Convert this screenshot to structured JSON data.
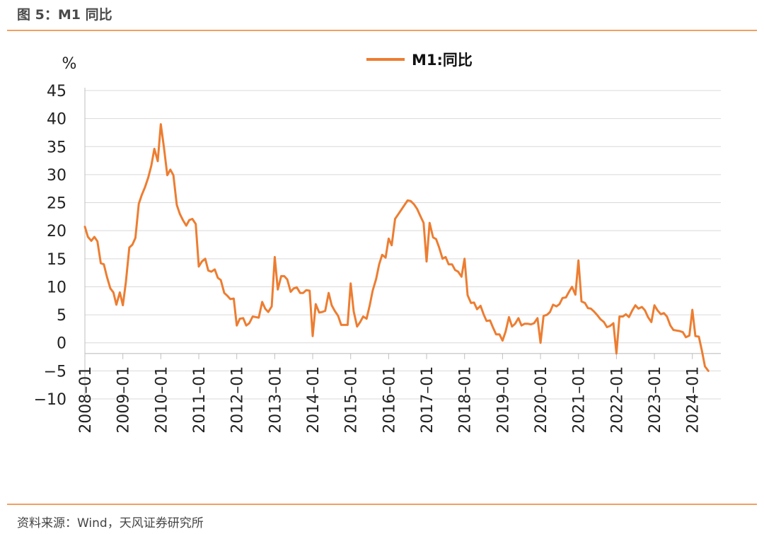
{
  "header": {
    "title": "图 5：M1 同比"
  },
  "footer": {
    "source": "资料来源：Wind，天风证券研究所"
  },
  "chart_data": {
    "type": "line",
    "unit_label": "%",
    "ylim": [
      -10,
      45
    ],
    "yticks": [
      45,
      40,
      35,
      30,
      25,
      20,
      15,
      10,
      5,
      0,
      -5,
      -10
    ],
    "xlim": [
      2008.0,
      2024.75
    ],
    "xticks": [
      "2008-01",
      "2009-01",
      "2010-01",
      "2011-01",
      "2012-01",
      "2013-01",
      "2014-01",
      "2015-01",
      "2016-01",
      "2017-01",
      "2018-01",
      "2019-01",
      "2020-01",
      "2021-01",
      "2022-01",
      "2023-01",
      "2024-01"
    ],
    "grid": true,
    "legend_position": "top-center",
    "colors": {
      "series": "#ed7d31",
      "grid": "#d9d9d9",
      "axis": "#bfbfbf"
    },
    "series": [
      {
        "name": "M1:同比",
        "points": [
          [
            2008.0,
            20.7
          ],
          [
            2008.08,
            18.9
          ],
          [
            2008.17,
            18.2
          ],
          [
            2008.25,
            18.9
          ],
          [
            2008.33,
            18.1
          ],
          [
            2008.42,
            14.2
          ],
          [
            2008.5,
            14.0
          ],
          [
            2008.58,
            11.8
          ],
          [
            2008.67,
            9.7
          ],
          [
            2008.75,
            9.0
          ],
          [
            2008.83,
            6.8
          ],
          [
            2008.92,
            9.0
          ],
          [
            2009.0,
            6.7
          ],
          [
            2009.08,
            10.9
          ],
          [
            2009.17,
            17.0
          ],
          [
            2009.25,
            17.5
          ],
          [
            2009.33,
            18.7
          ],
          [
            2009.42,
            24.8
          ],
          [
            2009.5,
            26.4
          ],
          [
            2009.58,
            27.7
          ],
          [
            2009.67,
            29.5
          ],
          [
            2009.75,
            31.6
          ],
          [
            2009.83,
            34.6
          ],
          [
            2009.92,
            32.4
          ],
          [
            2010.0,
            39.0
          ],
          [
            2010.08,
            35.0
          ],
          [
            2010.17,
            29.9
          ],
          [
            2010.25,
            30.9
          ],
          [
            2010.33,
            29.9
          ],
          [
            2010.42,
            24.6
          ],
          [
            2010.5,
            23.0
          ],
          [
            2010.58,
            21.9
          ],
          [
            2010.67,
            20.9
          ],
          [
            2010.75,
            21.9
          ],
          [
            2010.83,
            22.1
          ],
          [
            2010.92,
            21.2
          ],
          [
            2011.0,
            13.6
          ],
          [
            2011.08,
            14.5
          ],
          [
            2011.17,
            15.0
          ],
          [
            2011.25,
            12.9
          ],
          [
            2011.33,
            12.7
          ],
          [
            2011.42,
            13.1
          ],
          [
            2011.5,
            11.6
          ],
          [
            2011.58,
            11.2
          ],
          [
            2011.67,
            8.9
          ],
          [
            2011.75,
            8.4
          ],
          [
            2011.83,
            7.8
          ],
          [
            2011.92,
            7.9
          ],
          [
            2012.0,
            3.1
          ],
          [
            2012.08,
            4.3
          ],
          [
            2012.17,
            4.4
          ],
          [
            2012.25,
            3.1
          ],
          [
            2012.33,
            3.5
          ],
          [
            2012.42,
            4.7
          ],
          [
            2012.5,
            4.6
          ],
          [
            2012.58,
            4.5
          ],
          [
            2012.67,
            7.3
          ],
          [
            2012.75,
            6.1
          ],
          [
            2012.83,
            5.5
          ],
          [
            2012.92,
            6.5
          ],
          [
            2013.0,
            15.3
          ],
          [
            2013.08,
            9.5
          ],
          [
            2013.17,
            11.9
          ],
          [
            2013.25,
            11.9
          ],
          [
            2013.33,
            11.3
          ],
          [
            2013.42,
            9.1
          ],
          [
            2013.5,
            9.7
          ],
          [
            2013.58,
            9.9
          ],
          [
            2013.67,
            8.9
          ],
          [
            2013.75,
            8.9
          ],
          [
            2013.83,
            9.4
          ],
          [
            2013.92,
            9.3
          ],
          [
            2014.0,
            1.2
          ],
          [
            2014.08,
            6.9
          ],
          [
            2014.17,
            5.4
          ],
          [
            2014.25,
            5.5
          ],
          [
            2014.33,
            5.7
          ],
          [
            2014.42,
            8.9
          ],
          [
            2014.5,
            6.7
          ],
          [
            2014.58,
            5.7
          ],
          [
            2014.67,
            4.8
          ],
          [
            2014.75,
            3.2
          ],
          [
            2014.83,
            3.2
          ],
          [
            2014.92,
            3.2
          ],
          [
            2015.0,
            10.6
          ],
          [
            2015.08,
            5.6
          ],
          [
            2015.17,
            2.9
          ],
          [
            2015.25,
            3.7
          ],
          [
            2015.33,
            4.7
          ],
          [
            2015.42,
            4.3
          ],
          [
            2015.5,
            6.6
          ],
          [
            2015.58,
            9.3
          ],
          [
            2015.67,
            11.4
          ],
          [
            2015.75,
            14.0
          ],
          [
            2015.83,
            15.7
          ],
          [
            2015.92,
            15.2
          ],
          [
            2016.0,
            18.6
          ],
          [
            2016.08,
            17.4
          ],
          [
            2016.17,
            22.1
          ],
          [
            2016.25,
            22.9
          ],
          [
            2016.33,
            23.7
          ],
          [
            2016.42,
            24.6
          ],
          [
            2016.5,
            25.4
          ],
          [
            2016.58,
            25.3
          ],
          [
            2016.67,
            24.7
          ],
          [
            2016.75,
            23.9
          ],
          [
            2016.83,
            22.7
          ],
          [
            2016.92,
            21.4
          ],
          [
            2017.0,
            14.5
          ],
          [
            2017.08,
            21.4
          ],
          [
            2017.17,
            18.8
          ],
          [
            2017.25,
            18.5
          ],
          [
            2017.33,
            17.0
          ],
          [
            2017.42,
            15.0
          ],
          [
            2017.5,
            15.3
          ],
          [
            2017.58,
            14.0
          ],
          [
            2017.67,
            14.0
          ],
          [
            2017.75,
            13.0
          ],
          [
            2017.83,
            12.7
          ],
          [
            2017.92,
            11.8
          ],
          [
            2018.0,
            15.0
          ],
          [
            2018.08,
            8.5
          ],
          [
            2018.17,
            7.1
          ],
          [
            2018.25,
            7.2
          ],
          [
            2018.33,
            6.0
          ],
          [
            2018.42,
            6.6
          ],
          [
            2018.5,
            5.1
          ],
          [
            2018.58,
            3.9
          ],
          [
            2018.67,
            4.0
          ],
          [
            2018.75,
            2.7
          ],
          [
            2018.83,
            1.5
          ],
          [
            2018.92,
            1.5
          ],
          [
            2019.0,
            0.4
          ],
          [
            2019.08,
            2.0
          ],
          [
            2019.17,
            4.6
          ],
          [
            2019.25,
            2.9
          ],
          [
            2019.33,
            3.4
          ],
          [
            2019.42,
            4.4
          ],
          [
            2019.5,
            3.1
          ],
          [
            2019.58,
            3.4
          ],
          [
            2019.67,
            3.4
          ],
          [
            2019.75,
            3.3
          ],
          [
            2019.83,
            3.5
          ],
          [
            2019.92,
            4.4
          ],
          [
            2020.0,
            0.0
          ],
          [
            2020.08,
            4.8
          ],
          [
            2020.17,
            5.0
          ],
          [
            2020.25,
            5.5
          ],
          [
            2020.33,
            6.8
          ],
          [
            2020.42,
            6.5
          ],
          [
            2020.5,
            6.9
          ],
          [
            2020.58,
            8.0
          ],
          [
            2020.67,
            8.1
          ],
          [
            2020.75,
            9.1
          ],
          [
            2020.83,
            10.0
          ],
          [
            2020.92,
            8.6
          ],
          [
            2021.0,
            14.7
          ],
          [
            2021.08,
            7.4
          ],
          [
            2021.17,
            7.1
          ],
          [
            2021.25,
            6.2
          ],
          [
            2021.33,
            6.1
          ],
          [
            2021.42,
            5.5
          ],
          [
            2021.5,
            4.9
          ],
          [
            2021.58,
            4.2
          ],
          [
            2021.67,
            3.7
          ],
          [
            2021.75,
            2.8
          ],
          [
            2021.83,
            3.0
          ],
          [
            2021.92,
            3.5
          ],
          [
            2022.0,
            -1.9
          ],
          [
            2022.08,
            4.7
          ],
          [
            2022.17,
            4.7
          ],
          [
            2022.25,
            5.1
          ],
          [
            2022.33,
            4.6
          ],
          [
            2022.42,
            5.8
          ],
          [
            2022.5,
            6.7
          ],
          [
            2022.58,
            6.1
          ],
          [
            2022.67,
            6.4
          ],
          [
            2022.75,
            5.8
          ],
          [
            2022.83,
            4.6
          ],
          [
            2022.92,
            3.7
          ],
          [
            2023.0,
            6.7
          ],
          [
            2023.08,
            5.8
          ],
          [
            2023.17,
            5.1
          ],
          [
            2023.25,
            5.3
          ],
          [
            2023.33,
            4.7
          ],
          [
            2023.42,
            3.1
          ],
          [
            2023.5,
            2.3
          ],
          [
            2023.58,
            2.2
          ],
          [
            2023.67,
            2.1
          ],
          [
            2023.75,
            1.9
          ],
          [
            2023.83,
            1.0
          ],
          [
            2023.92,
            1.3
          ],
          [
            2024.0,
            5.9
          ],
          [
            2024.08,
            1.2
          ],
          [
            2024.17,
            1.1
          ],
          [
            2024.25,
            -1.4
          ],
          [
            2024.33,
            -4.2
          ],
          [
            2024.42,
            -5.0
          ]
        ]
      }
    ]
  }
}
